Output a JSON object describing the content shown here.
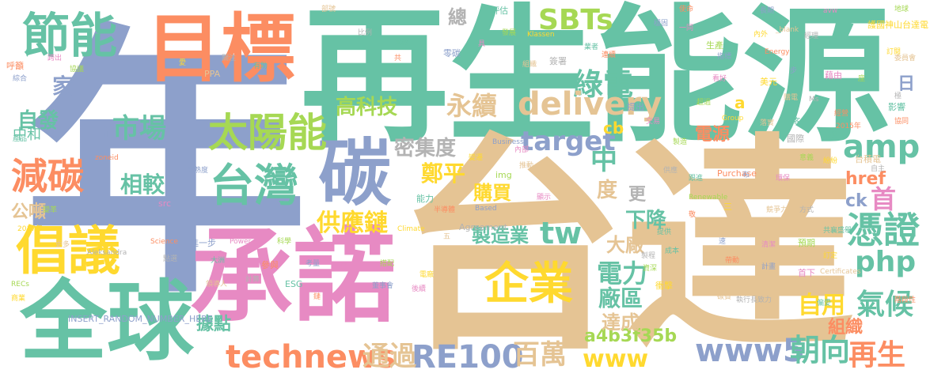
{
  "words": {
    "nian": "年",
    "zaishengnengyuan": "再生能源",
    "taida": "台達",
    "chengnuo": "承諾",
    "mubiao": "目標",
    "quanqiu": "全球",
    "changyi": "倡議",
    "jieneng": "節能",
    "tan": "碳",
    "taiwan": "台灣",
    "taiyangneng": "太陽能",
    "jiantan": "減碳",
    "qiye": "企業",
    "shichang": "市場",
    "zifa": "自發",
    "zhonghe": "中和",
    "jia": "家",
    "gongdun": "公噸",
    "xiangjiao": "相較",
    "gongyinglian": "供應鏈",
    "mijidu": "密集度",
    "zhengping": "鄭平",
    "target": "target",
    "amp": "amp",
    "sbts": "SBTs",
    "lvdian": "綠電",
    "yongxu": "永續",
    "delivery": "delivery",
    "gaokeji": "高科技",
    "zong": "總",
    "pingzheng": "憑證",
    "php": "php",
    "tw": "tw",
    "technews": "technews",
    "re100": "RE100",
    "www5": "www5",
    "www": "www",
    "chaoxiang": "朝向",
    "zaisheng": "再生",
    "baiwan": "百萬",
    "tongguo": "通過",
    "a4b": "a4b3f35b",
    "dianli": "電力",
    "changqu": "廠區",
    "zhizaoye": "製造業",
    "goumai": "購買",
    "xiajiang": "下降",
    "dachang": "大廠",
    "zhong": "中",
    "du": "度",
    "dianyuan": "電源",
    "qihou": "氣候",
    "ziyong": "自用",
    "zuzhi": "組織",
    "dacheng": "達成",
    "judian": "據點",
    "href": "href",
    "ck": "ck",
    "shou": "首",
    "gengv": "更",
    "cb": "cb",
    "a": "a",
    "ri": "日",
    "n": "n",
    "small": [
      "評估",
      "使命",
      "長期",
      "avw",
      "地球",
      "護國神山台達電",
      "部號",
      "比例",
      "實施",
      "共",
      "零碳",
      "具",
      "發展",
      "Klassen",
      "組織",
      "簽署",
      "業者",
      "連續",
      "穩固",
      "一同",
      "生產",
      "內外",
      "_blank",
      "經理",
      "模範",
      "呼籲",
      "綜合",
      "跨出",
      "協議",
      "愛",
      "PPA",
      "關注",
      "有助",
      "Energy",
      "步",
      "藉由",
      "座",
      "訂閱",
      "委員會",
      "極",
      "影響",
      "協同",
      "指標",
      "看好",
      "超過",
      "美元",
      "購電",
      "Ms",
      "客戶",
      "經營",
      "提出",
      "交易",
      "製造",
      "Group",
      "落實",
      "國際",
      "活動",
      "2015年",
      "Business",
      "內部",
      "img",
      "變遷",
      "推動",
      "供應",
      "跟進",
      "Purchase",
      "布",
      "環保",
      "意義",
      "紛紛",
      "台積電",
      "自主",
      "產品",
      "zoneid",
      "成熟度",
      "src",
      "變革",
      "2017年",
      "更多",
      "Aleksandra",
      "能力",
      "半導體",
      "Based",
      "顯示",
      "Renewable",
      "三",
      "競爭力",
      "方式",
      "共襄盛舉",
      "Science",
      "進一步",
      "Power",
      "科學",
      "Climate",
      "五",
      "Agreement",
      "提供",
      "敬",
      "速",
      "清潔",
      "預期",
      "訂定",
      "Certificates",
      "點選",
      "大洲",
      "參與",
      "考量",
      "底",
      "搭配",
      "電廠",
      "核心",
      "製程",
      "成本",
      "帶動",
      "計畫",
      "首下",
      "RECs",
      "商業",
      "領導人",
      "計算",
      "ESG",
      "鏈",
      "董事會",
      "後續",
      "資深",
      "衝擊",
      "碳費",
      "執行長致力",
      "偏愛",
      "階段性",
      "INSERT_RANDOM_NUMBER_HERE"
    ]
  }
}
